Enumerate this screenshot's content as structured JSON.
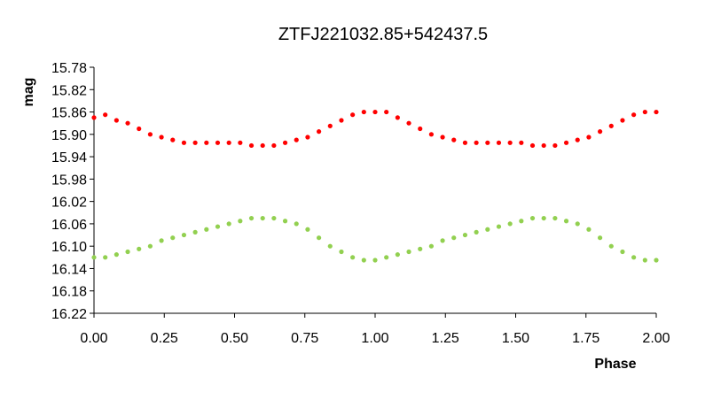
{
  "chart_data": {
    "type": "scatter",
    "title": "ZTFJ221032.85+542437.5",
    "xlabel": "Phase",
    "ylabel": "mag",
    "xlim": [
      0,
      2
    ],
    "ylim": [
      16.22,
      15.78
    ],
    "y_inverted": true,
    "grid": false,
    "legend": "none",
    "xticks": [
      "0.00",
      "0.25",
      "0.50",
      "0.75",
      "1.00",
      "1.25",
      "1.50",
      "1.75",
      "2.00"
    ],
    "yticks": [
      "15.78",
      "15.82",
      "15.86",
      "15.90",
      "15.94",
      "15.98",
      "16.02",
      "16.06",
      "16.10",
      "16.14",
      "16.18",
      "16.22"
    ],
    "series": [
      {
        "color": "#ff0000",
        "x": [
          0.0,
          0.04,
          0.08,
          0.12,
          0.16,
          0.2,
          0.24,
          0.28,
          0.32,
          0.36,
          0.4,
          0.44,
          0.48,
          0.52,
          0.56,
          0.6,
          0.64,
          0.68,
          0.72,
          0.76,
          0.8,
          0.84,
          0.88,
          0.92,
          0.96,
          1.0,
          1.04,
          1.08,
          1.12,
          1.16,
          1.2,
          1.24,
          1.28,
          1.32,
          1.36,
          1.4,
          1.44,
          1.48,
          1.52,
          1.56,
          1.6,
          1.64,
          1.68,
          1.72,
          1.76,
          1.8,
          1.84,
          1.88,
          1.92,
          1.96,
          2.0
        ],
        "y": [
          15.87,
          15.865,
          15.875,
          15.88,
          15.89,
          15.9,
          15.905,
          15.91,
          15.915,
          15.915,
          15.915,
          15.915,
          15.915,
          15.915,
          15.92,
          15.92,
          15.92,
          15.915,
          15.91,
          15.905,
          15.895,
          15.885,
          15.875,
          15.865,
          15.86,
          15.86,
          15.86,
          15.87,
          15.88,
          15.89,
          15.9,
          15.905,
          15.91,
          15.915,
          15.915,
          15.915,
          15.915,
          15.915,
          15.915,
          15.92,
          15.92,
          15.92,
          15.915,
          15.91,
          15.905,
          15.895,
          15.885,
          15.875,
          15.865,
          15.86,
          15.86
        ]
      },
      {
        "color": "#92d050",
        "x": [
          0.0,
          0.04,
          0.08,
          0.12,
          0.16,
          0.2,
          0.24,
          0.28,
          0.32,
          0.36,
          0.4,
          0.44,
          0.48,
          0.52,
          0.56,
          0.6,
          0.64,
          0.68,
          0.72,
          0.76,
          0.8,
          0.84,
          0.88,
          0.92,
          0.96,
          1.0,
          1.04,
          1.08,
          1.12,
          1.16,
          1.2,
          1.24,
          1.28,
          1.32,
          1.36,
          1.4,
          1.44,
          1.48,
          1.52,
          1.56,
          1.6,
          1.64,
          1.68,
          1.72,
          1.76,
          1.8,
          1.84,
          1.88,
          1.92,
          1.96,
          2.0
        ],
        "y": [
          16.12,
          16.12,
          16.115,
          16.11,
          16.105,
          16.1,
          16.09,
          16.085,
          16.08,
          16.075,
          16.07,
          16.065,
          16.06,
          16.055,
          16.05,
          16.05,
          16.05,
          16.055,
          16.06,
          16.07,
          16.085,
          16.1,
          16.11,
          16.12,
          16.125,
          16.125,
          16.12,
          16.115,
          16.11,
          16.105,
          16.1,
          16.09,
          16.085,
          16.08,
          16.075,
          16.07,
          16.065,
          16.06,
          16.055,
          16.05,
          16.05,
          16.05,
          16.055,
          16.06,
          16.07,
          16.085,
          16.1,
          16.11,
          16.12,
          16.125,
          16.125
        ]
      }
    ]
  }
}
